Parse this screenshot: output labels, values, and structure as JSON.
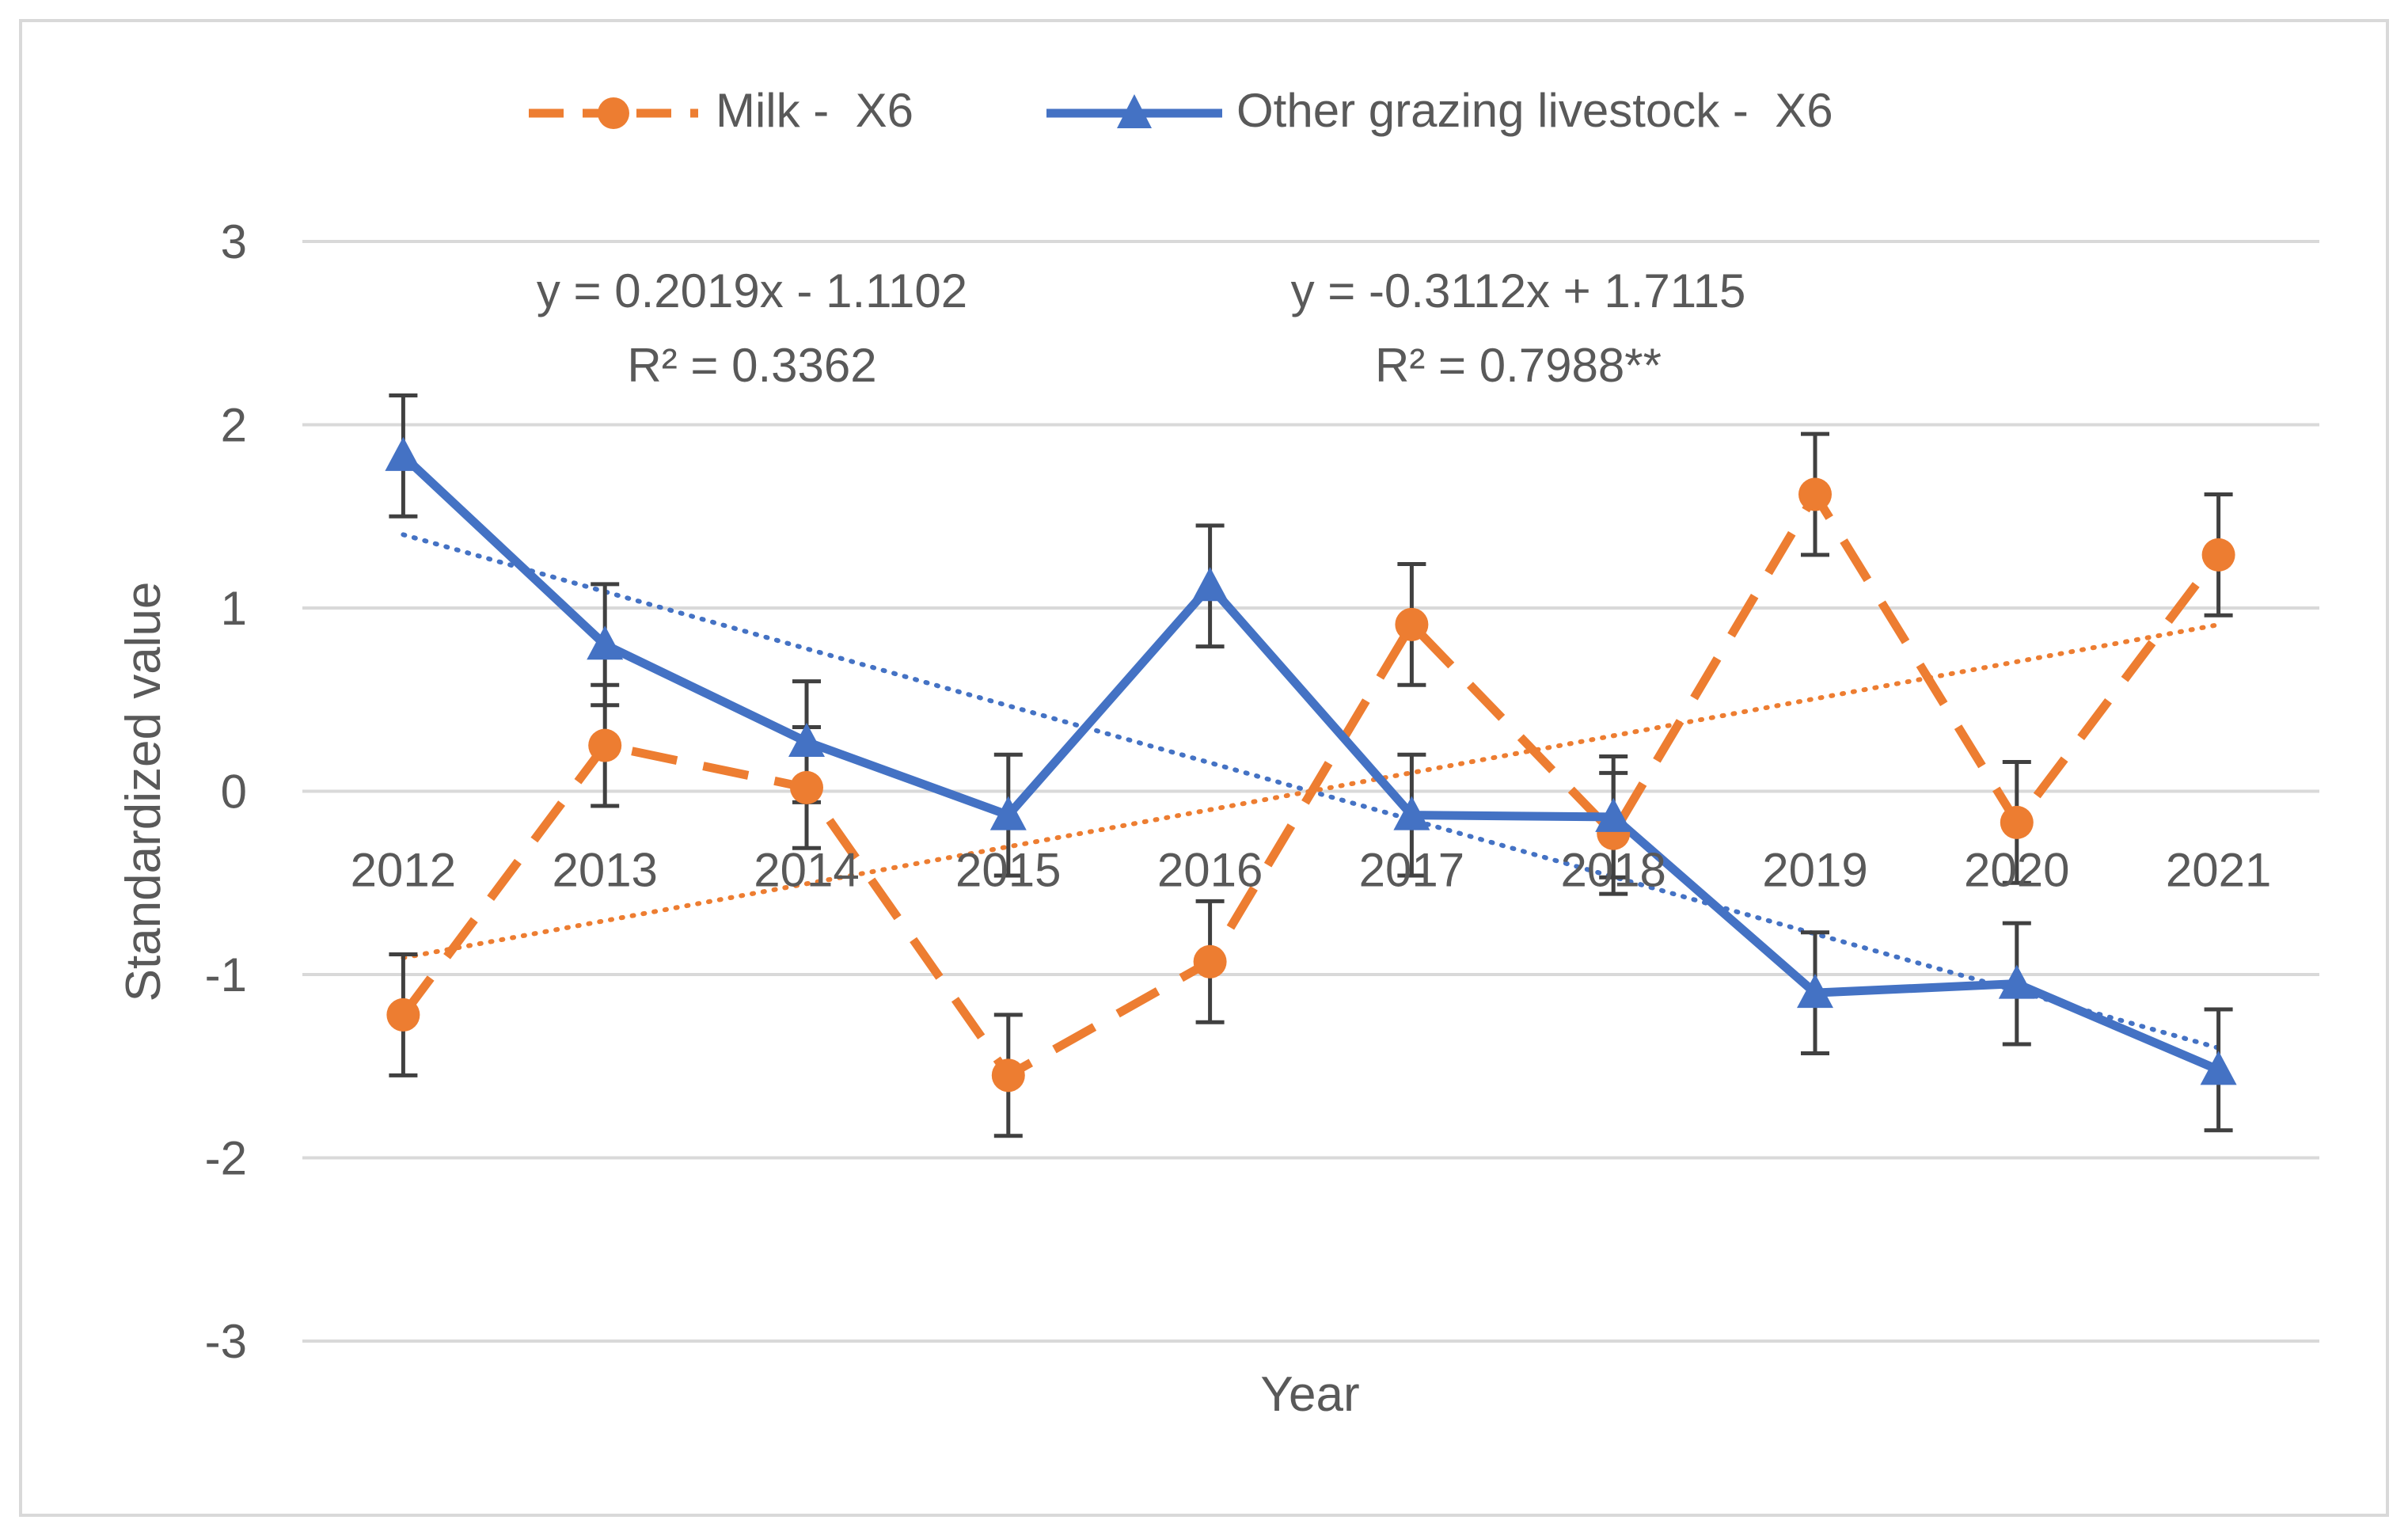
{
  "chart_data": {
    "type": "line",
    "title": "",
    "xlabel": "Year",
    "ylabel": "Standardized value",
    "ylim": [
      -3,
      3
    ],
    "yticks": [
      "3",
      "2",
      "1",
      "0",
      "-1",
      "-2",
      "-3"
    ],
    "categories": [
      "2012",
      "2013",
      "2014",
      "2015",
      "2016",
      "2017",
      "2018",
      "2019",
      "2020",
      "2021"
    ],
    "legend_position": "top",
    "grid": true,
    "series": [
      {
        "name": "Milk -  X6",
        "style": "dashed",
        "marker": "circle",
        "color": "#ED7D31",
        "values": [
          -1.22,
          0.25,
          0.02,
          -1.55,
          -0.93,
          0.91,
          -0.23,
          1.62,
          -0.17,
          1.29
        ],
        "error": 0.33,
        "trend": {
          "slope": 0.2019,
          "intercept": -1.1102,
          "equation": "y = 0.2019x - 1.1102",
          "r2": "R² = 0.3362"
        }
      },
      {
        "name": "Other grazing livestock -  X6",
        "style": "solid",
        "marker": "triangle",
        "color": "#4472C4",
        "values": [
          1.83,
          0.8,
          0.27,
          -0.13,
          1.12,
          -0.13,
          -0.14,
          -1.1,
          -1.05,
          -1.52
        ],
        "error": 0.33,
        "trend": {
          "slope": -0.3112,
          "intercept": 1.7115,
          "equation": "y = -0.3112x + 1.7115",
          "r2": "R² = 0.7988**"
        }
      }
    ]
  }
}
